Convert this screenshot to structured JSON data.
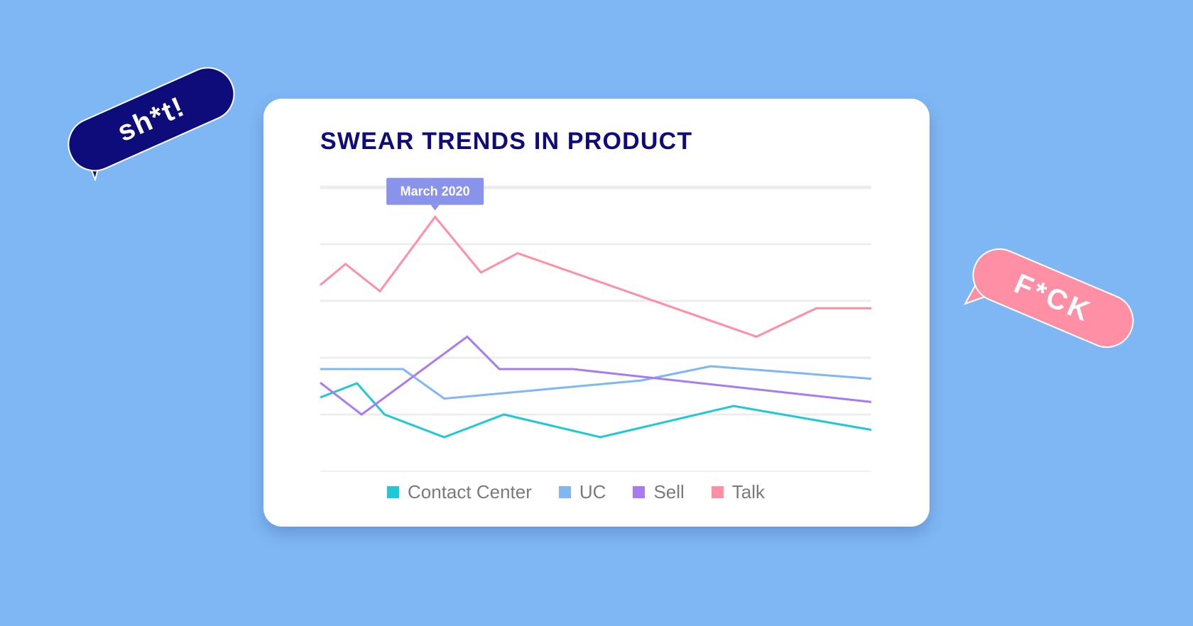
{
  "colors": {
    "background": "#7fb7f5",
    "title": "#0d0c7a",
    "grid": "#ececec",
    "tooltip": "#8a93ea"
  },
  "stickers": {
    "left": {
      "text": "sh*t!",
      "color": "#0d0c7a"
    },
    "right": {
      "text": "F*CK",
      "color": "#fe8fa4"
    }
  },
  "chart_data": {
    "type": "line",
    "title": "SWEAR TRENDS IN PRODUCT",
    "xlabel": "",
    "ylabel": "",
    "x": [
      0,
      0.6,
      1.3,
      1.8,
      2.7,
      3.3,
      4.0,
      4.9,
      5.7,
      6.1,
      7.6,
      8.1,
      9.8,
      10.5,
      11.3,
      12.0
    ],
    "ylim": [
      0,
      5
    ],
    "grid": true,
    "gridlines": 6,
    "legend_position": "bottom",
    "tooltip": {
      "label": "March 2020",
      "series": "Talk",
      "x": 2.5
    },
    "series": [
      {
        "name": "Contact Center",
        "color": "#1fc8d4",
        "points": [
          [
            0,
            1.3
          ],
          [
            0.8,
            1.55
          ],
          [
            1.4,
            1.0
          ],
          [
            2.7,
            0.6
          ],
          [
            4.0,
            1.0
          ],
          [
            6.1,
            0.6
          ],
          [
            9.0,
            1.15
          ],
          [
            12.0,
            0.73
          ]
        ]
      },
      {
        "name": "UC",
        "color": "#7fb7f5",
        "points": [
          [
            0,
            1.8
          ],
          [
            1.8,
            1.8
          ],
          [
            2.7,
            1.28
          ],
          [
            7.0,
            1.6
          ],
          [
            8.5,
            1.85
          ],
          [
            12.0,
            1.63
          ]
        ]
      },
      {
        "name": "Sell",
        "color": "#a77cf0",
        "points": [
          [
            0,
            1.56
          ],
          [
            0.9,
            1.0
          ],
          [
            3.2,
            2.37
          ],
          [
            3.9,
            1.8
          ],
          [
            5.5,
            1.8
          ],
          [
            12.0,
            1.22
          ]
        ]
      },
      {
        "name": "Talk",
        "color": "#fe8fa4",
        "points": [
          [
            0,
            3.28
          ],
          [
            0.55,
            3.65
          ],
          [
            1.3,
            3.17
          ],
          [
            2.5,
            4.48
          ],
          [
            3.5,
            3.5
          ],
          [
            4.3,
            3.84
          ],
          [
            9.5,
            2.37
          ],
          [
            10.8,
            2.87
          ],
          [
            12.0,
            2.87
          ]
        ]
      }
    ]
  }
}
